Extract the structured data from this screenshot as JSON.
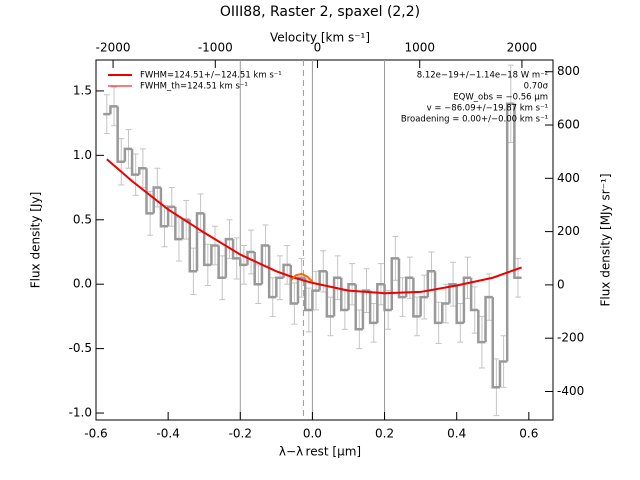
{
  "chart_data": {
    "type": "step",
    "title": "OIII88, Raster 2, spaxel (2,2)",
    "xlabel": "λ−λ rest [µm]",
    "x2label": "Velocity [km s⁻¹]",
    "ylabel": "Flux density [Jy]",
    "y2label": "Flux density [MJy sr⁻¹]",
    "xlim": [
      -0.6,
      0.667
    ],
    "xticks": [
      -0.6,
      -0.4,
      -0.2,
      {
        "value": 0,
        "label": "0.0"
      },
      0.2,
      0.4,
      0.6
    ],
    "x2lim": [
      -2167,
      2304
    ],
    "x2ticks": [
      -2000,
      -1000,
      0,
      1000,
      2000
    ],
    "ylim": [
      -1.054,
      1.74
    ],
    "yticks": [
      {
        "value": -1,
        "label": "-1.0"
      },
      -0.5,
      {
        "value": 0,
        "label": "0.0"
      },
      0.5,
      {
        "value": 1,
        "label": "1.0"
      },
      1.5
    ],
    "y2lim": [
      -507,
      844
    ],
    "y2ticks": [
      -400,
      -200,
      0,
      200,
      400,
      600,
      800
    ],
    "vlines": [
      {
        "x": -0.2,
        "dashed": false
      },
      {
        "x": -0.025,
        "dashed": true
      },
      {
        "x": 0,
        "dashed": false
      },
      {
        "x": 0.2,
        "dashed": false
      }
    ],
    "series": [
      {
        "name": "Spectrum",
        "color": "#999999",
        "x": [
          -0.57,
          -0.55,
          -0.53,
          -0.51,
          -0.49,
          -0.47,
          -0.45,
          -0.43,
          -0.41,
          -0.39,
          -0.37,
          -0.35,
          -0.33,
          -0.31,
          -0.29,
          -0.27,
          -0.25,
          -0.23,
          -0.21,
          -0.19,
          -0.17,
          -0.15,
          -0.13,
          -0.11,
          -0.09,
          -0.07,
          -0.05,
          -0.03,
          -0.01,
          0.01,
          0.03,
          0.05,
          0.07,
          0.09,
          0.11,
          0.13,
          0.15,
          0.17,
          0.19,
          0.21,
          0.23,
          0.25,
          0.27,
          0.29,
          0.31,
          0.33,
          0.35,
          0.37,
          0.39,
          0.41,
          0.43,
          0.45,
          0.47,
          0.49,
          0.51,
          0.53,
          0.55,
          0.57
        ],
        "values": [
          1.32,
          1.38,
          0.95,
          1.05,
          0.85,
          0.9,
          0.55,
          0.75,
          0.45,
          0.6,
          0.35,
          0.5,
          0.1,
          0.55,
          0.15,
          0.3,
          0.05,
          0.35,
          0.2,
          0.15,
          0.25,
          0.0,
          0.3,
          -0.1,
          0.05,
          0.15,
          -0.15,
          0.05,
          -0.2,
          -0.05,
          0.1,
          -0.25,
          0.05,
          -0.2,
          0.0,
          -0.35,
          -0.05,
          -0.3,
          0.0,
          -0.2,
          0.2,
          -0.1,
          0.05,
          -0.25,
          -0.1,
          0.1,
          -0.3,
          -0.15,
          0.0,
          -0.3,
          0.05,
          -0.2,
          -0.45,
          -0.1,
          -0.8,
          -0.6,
          1.4,
          0.05
        ],
        "errors": [
          0.15,
          0.15,
          0.18,
          0.15,
          0.16,
          0.15,
          0.17,
          0.15,
          0.16,
          0.15,
          0.17,
          0.15,
          0.18,
          0.15,
          0.16,
          0.15,
          0.17,
          0.15,
          0.16,
          0.15,
          0.17,
          0.15,
          0.16,
          0.15,
          0.17,
          0.15,
          0.16,
          0.15,
          0.17,
          0.15,
          0.16,
          0.15,
          0.17,
          0.15,
          0.16,
          0.15,
          0.17,
          0.15,
          0.16,
          0.15,
          0.17,
          0.15,
          0.16,
          0.15,
          0.17,
          0.15,
          0.16,
          0.15,
          0.17,
          0.15,
          0.16,
          0.18,
          0.2,
          0.18,
          0.22,
          0.2,
          0.3,
          0.15
        ]
      },
      {
        "name": "FWHM=124.51+/−124.51 km s⁻¹",
        "color": "#ee0000",
        "x": [
          -0.57,
          -0.5,
          -0.4,
          -0.3,
          -0.2,
          -0.1,
          -0.05,
          0,
          0.1,
          0.2,
          0.3,
          0.4,
          0.5,
          0.58
        ],
        "values": [
          0.97,
          0.8,
          0.58,
          0.4,
          0.23,
          0.1,
          0.05,
          0.01,
          -0.05,
          -0.07,
          -0.06,
          -0.01,
          0.05,
          0.13
        ]
      },
      {
        "name": "FWHM_th=124.51 km s⁻¹",
        "color": "#ff6600",
        "x": [
          -0.06,
          -0.045,
          -0.03,
          -0.015,
          0.0
        ],
        "values": [
          0.03,
          0.07,
          0.08,
          0.06,
          0.02
        ]
      }
    ],
    "annotations": [
      "8.12e−19+/−1.14e−18 W m⁻²",
      "0.70σ",
      "EQW_obs = −0.56 µm",
      "v = −86.09+/−19.87 km s⁻¹",
      "Broadening = 0.00+/−0.00 km s⁻¹"
    ]
  }
}
